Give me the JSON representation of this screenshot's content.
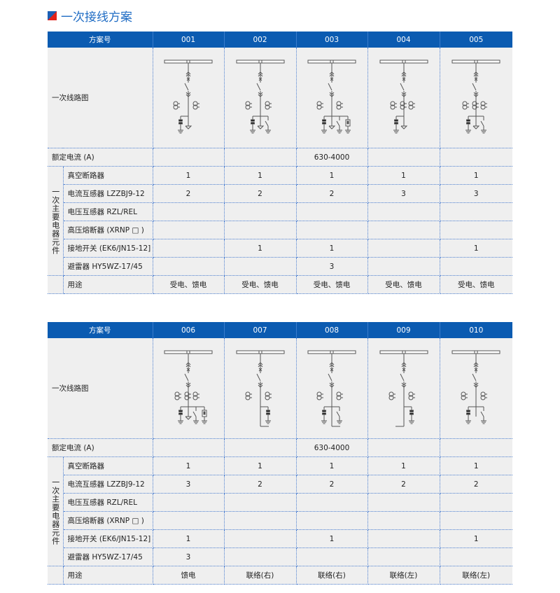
{
  "title": "一次接线方案",
  "colors": {
    "header": "#0b5bb1",
    "title": "#1f6cc4",
    "border": "#4d7fd0",
    "background": "#efefef"
  },
  "tables": [
    {
      "header_label": "方案号",
      "schemes": [
        "001",
        "002",
        "003",
        "004",
        "005"
      ],
      "diagram_label": "一次线路图",
      "diagrams": [
        {
          "ct": 2,
          "items": [
            "arrester",
            "cable-ground"
          ],
          "tie": ""
        },
        {
          "ct": 2,
          "items": [
            "arrester",
            "cable-ground",
            "earth-switch"
          ],
          "tie": ""
        },
        {
          "ct": 2,
          "items": [
            "arrester",
            "cable-ground",
            "earth-switch",
            "fuse"
          ],
          "tie": ""
        },
        {
          "ct": 3,
          "items": [
            "arrester",
            "cable-ground"
          ],
          "tie": ""
        },
        {
          "ct": 3,
          "items": [
            "arrester",
            "cable-ground",
            "earth-switch"
          ],
          "tie": ""
        }
      ],
      "rated_label": "额定电流 (A)",
      "rated_values": [
        "",
        "",
        "630-4000",
        "",
        ""
      ],
      "group_label": "一次主要电器元件",
      "rows": [
        {
          "label": "真空断路器",
          "values": [
            "1",
            "1",
            "1",
            "1",
            "1"
          ]
        },
        {
          "label": "电流互感器 LZZBJ9-12",
          "values": [
            "2",
            "2",
            "2",
            "3",
            "3"
          ]
        },
        {
          "label": "电压互感器 RZL/REL",
          "values": [
            "",
            "",
            "",
            "",
            ""
          ]
        },
        {
          "label": "高压熔断器 (XRNP □ )",
          "values": [
            "",
            "",
            "",
            "",
            ""
          ]
        },
        {
          "label": "接地开关 (EK6/JN15-12]",
          "values": [
            "",
            "1",
            "1",
            "",
            "1"
          ]
        },
        {
          "label": "避雷器 HY5WZ-17/45",
          "values": [
            "",
            "",
            "3",
            "",
            ""
          ]
        }
      ],
      "usage_label": "用途",
      "usage_values": [
        "受电、馈电",
        "受电、馈电",
        "受电、馈电",
        "受电、馈电",
        "受电、馈电"
      ]
    },
    {
      "header_label": "方案号",
      "schemes": [
        "006",
        "007",
        "008",
        "009",
        "010"
      ],
      "diagram_label": "一次线路图",
      "diagrams": [
        {
          "ct": 3,
          "items": [
            "arrester",
            "cable-ground",
            "earth-switch",
            "fuse"
          ],
          "tie": ""
        },
        {
          "ct": 2,
          "items": [
            "arrester-right"
          ],
          "tie": "right"
        },
        {
          "ct": 2,
          "items": [
            "arrester",
            "earth-switch"
          ],
          "tie": "right"
        },
        {
          "ct": 2,
          "items": [
            "arrester-right"
          ],
          "tie": "left"
        },
        {
          "ct": 2,
          "items": [
            "arrester",
            "earth-switch"
          ],
          "tie": ""
        }
      ],
      "rated_label": "额定电流 (A)",
      "rated_values": [
        "",
        "",
        "630-4000",
        "",
        ""
      ],
      "group_label": "一次主要电器元件",
      "rows": [
        {
          "label": "真空断路器",
          "values": [
            "1",
            "1",
            "1",
            "1",
            "1"
          ]
        },
        {
          "label": "电流互感器 LZZBJ9-12",
          "values": [
            "3",
            "2",
            "2",
            "2",
            "2"
          ]
        },
        {
          "label": "电压互感器 RZL/REL",
          "values": [
            "",
            "",
            "",
            "",
            ""
          ]
        },
        {
          "label": "高压熔断器 (XRNP □ )",
          "values": [
            "",
            "",
            "",
            "",
            ""
          ]
        },
        {
          "label": "接地开关 (EK6/JN15-12]",
          "values": [
            "1",
            "",
            "1",
            "",
            "1"
          ]
        },
        {
          "label": "避雷器 HY5WZ-17/45",
          "values": [
            "3",
            "",
            "",
            "",
            ""
          ]
        }
      ],
      "usage_label": "用途",
      "usage_values": [
        "馈电",
        "联络(右)",
        "联络(右)",
        "联络(左)",
        "联络(左)"
      ]
    }
  ]
}
